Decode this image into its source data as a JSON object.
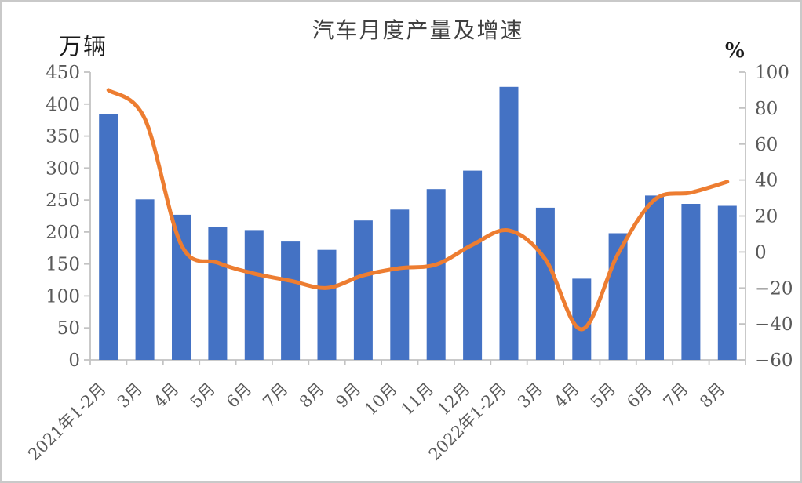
{
  "window": {
    "background": "#ffffff",
    "border_color": "#c9c9c9"
  },
  "chart_data": {
    "type": "bar",
    "subtype": "bar+line-dual-axis",
    "title": "汽车月度产量及增速",
    "legend": "none",
    "grid": "off",
    "left_axis": {
      "unit_label": "万辆",
      "min": 0,
      "max": 450,
      "step": 50,
      "tick_labels": [
        "0",
        "50",
        "100",
        "150",
        "200",
        "250",
        "300",
        "350",
        "400",
        "450"
      ]
    },
    "right_axis": {
      "unit_label": "%",
      "min": -60,
      "max": 100,
      "step": 20,
      "tick_labels": [
        "-60",
        "-40",
        "-20",
        "0",
        "20",
        "40",
        "60",
        "80",
        "100"
      ]
    },
    "categories": [
      "2021年1-2月",
      "3月",
      "4月",
      "5月",
      "6月",
      "7月",
      "8月",
      "9月",
      "10月",
      "11月",
      "12月",
      "2022年1-2月",
      "3月",
      "4月",
      "5月",
      "6月",
      "7月",
      "8月"
    ],
    "series": [
      {
        "id": "production-bars",
        "type": "bar",
        "axis": "left",
        "color": "#4472C4",
        "values": [
          385,
          251,
          227,
          208,
          203,
          185,
          172,
          218,
          235,
          267,
          296,
          427,
          238,
          127,
          198,
          257,
          244,
          241
        ]
      },
      {
        "id": "growth-line",
        "type": "line",
        "axis": "right",
        "smooth": true,
        "color": "#ED7D31",
        "values": [
          90,
          74,
          4,
          -6,
          -12,
          -16,
          -20,
          -13,
          -9,
          -7,
          4,
          12,
          -4,
          -43,
          -1,
          29,
          33,
          39
        ]
      }
    ],
    "colors": {
      "bar": "#4472C4",
      "line": "#ED7D31",
      "axis_line": "#c3c3c3",
      "tick_label": "#595959",
      "title": "#404040",
      "unit_label": "#1a1a1a"
    }
  }
}
